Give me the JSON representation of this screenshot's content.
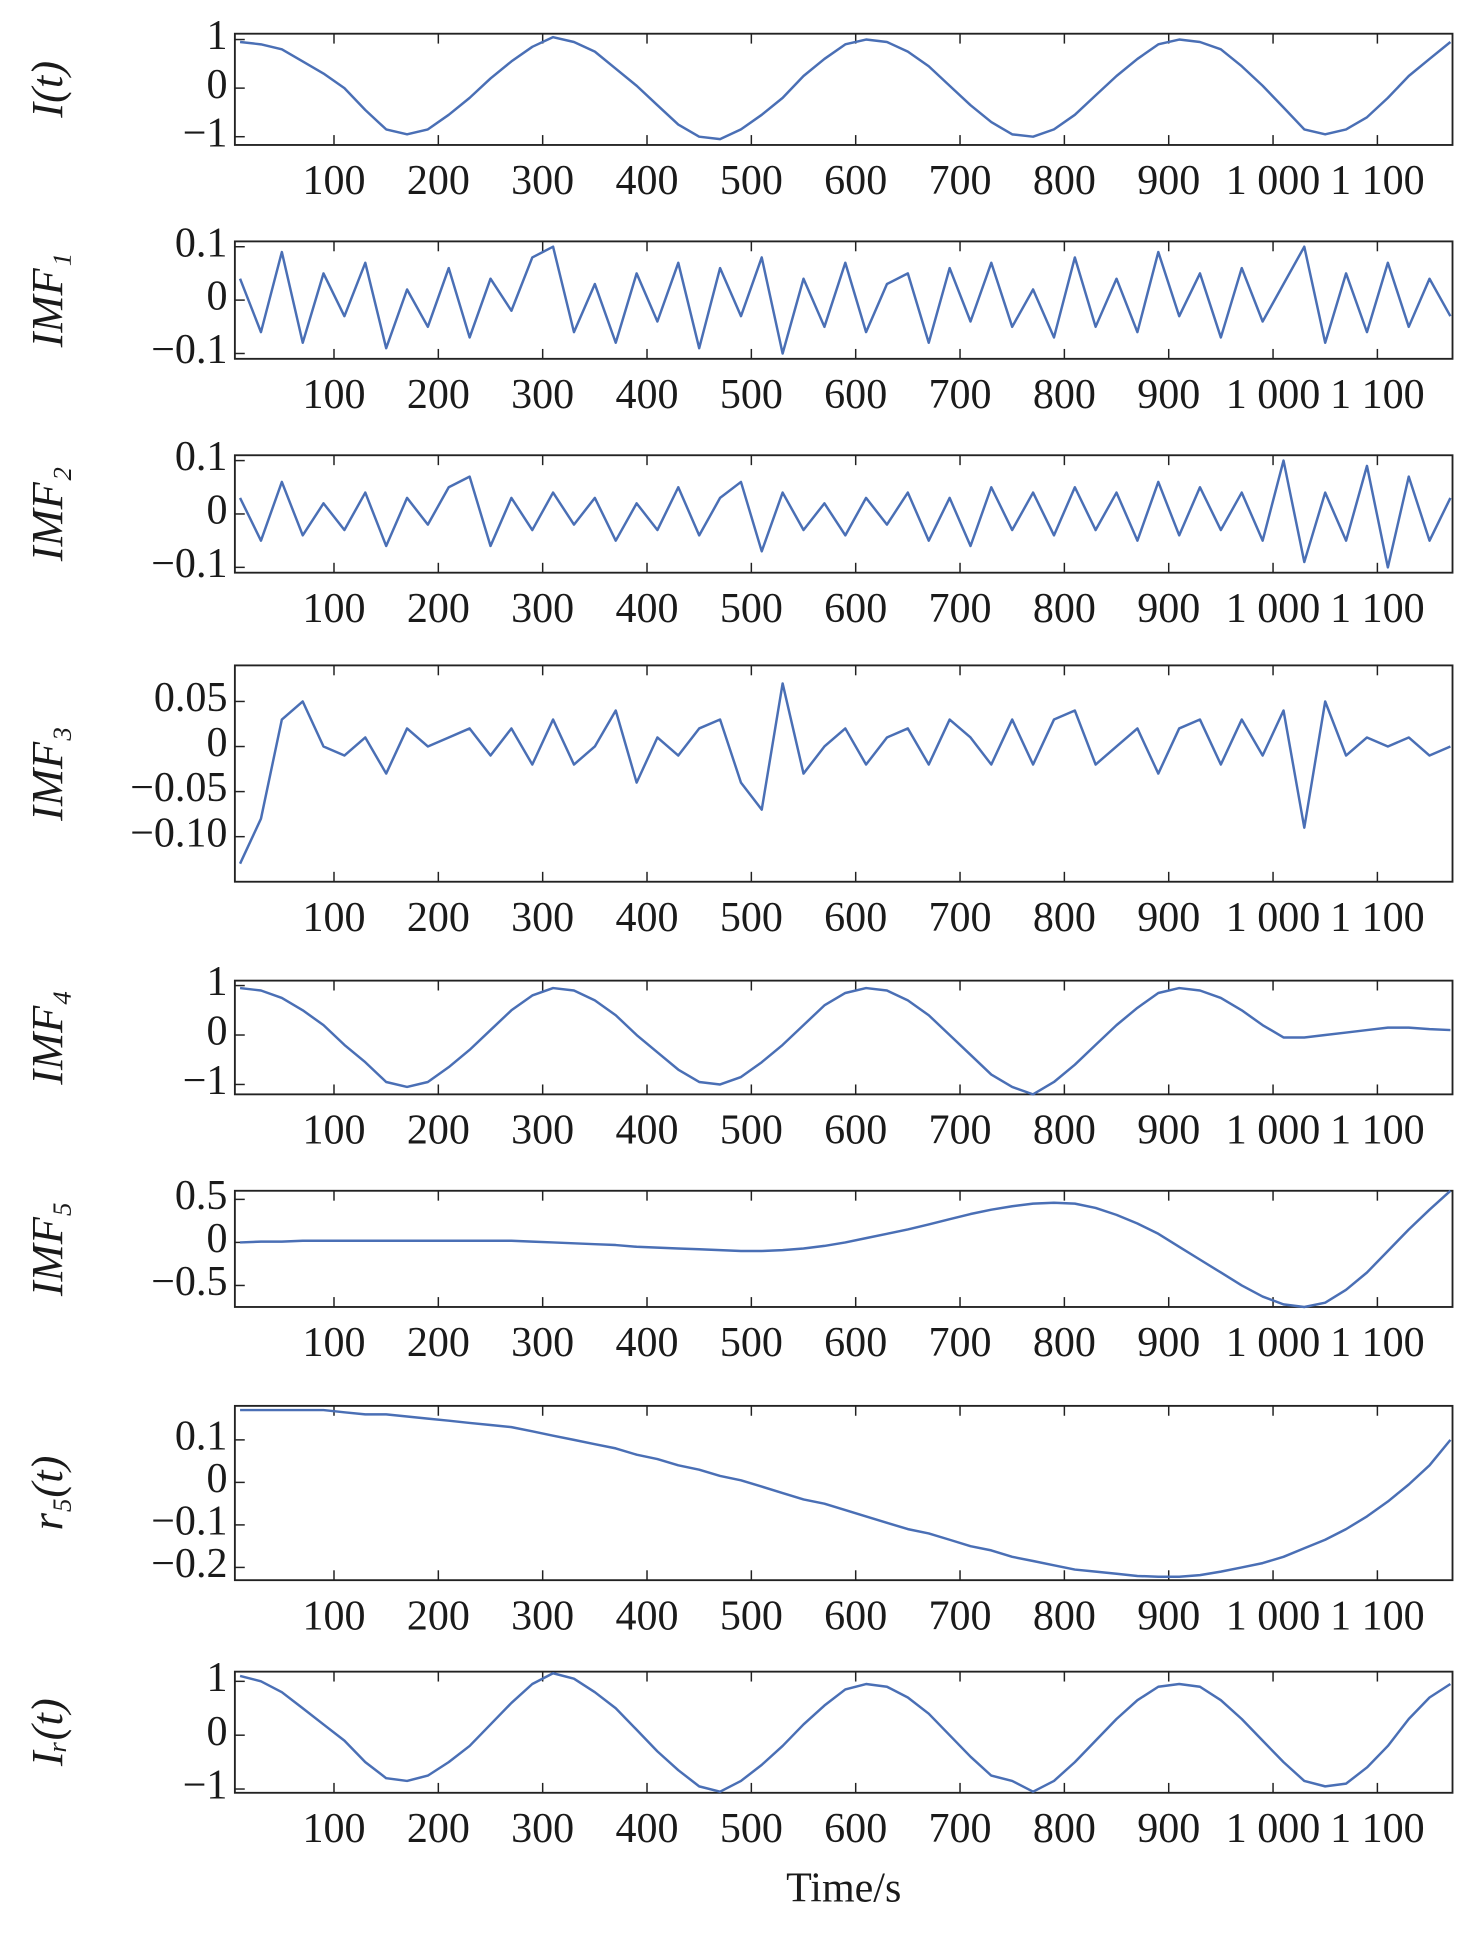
{
  "chart_data": [
    {
      "type": "line",
      "ylabel": "I(t)",
      "color": "#4a6fb5",
      "x": [
        10,
        30,
        50,
        70,
        90,
        110,
        130,
        150,
        170,
        190,
        210,
        230,
        250,
        270,
        290,
        310,
        330,
        350,
        370,
        390,
        410,
        430,
        450,
        470,
        490,
        510,
        530,
        550,
        570,
        590,
        610,
        630,
        650,
        670,
        690,
        710,
        730,
        750,
        770,
        790,
        810,
        830,
        850,
        870,
        890,
        910,
        930,
        950,
        970,
        990,
        1010,
        1030,
        1050,
        1070,
        1090,
        1110,
        1130,
        1150,
        1170
      ],
      "values": [
        0.95,
        0.9,
        0.8,
        0.55,
        0.3,
        0.0,
        -0.45,
        -0.85,
        -0.95,
        -0.85,
        -0.55,
        -0.2,
        0.2,
        0.55,
        0.85,
        1.05,
        0.95,
        0.75,
        0.4,
        0.05,
        -0.35,
        -0.75,
        -1.0,
        -1.05,
        -0.85,
        -0.55,
        -0.2,
        0.25,
        0.6,
        0.9,
        1.0,
        0.95,
        0.75,
        0.45,
        0.05,
        -0.35,
        -0.7,
        -0.95,
        -1.0,
        -0.85,
        -0.55,
        -0.15,
        0.25,
        0.6,
        0.9,
        1.0,
        0.95,
        0.8,
        0.45,
        0.05,
        -0.4,
        -0.85,
        -0.95,
        -0.85,
        -0.6,
        -0.2,
        0.25,
        0.6,
        0.95
      ],
      "xlim": [
        5,
        1172
      ],
      "xticks": [
        100,
        200,
        300,
        400,
        500,
        600,
        700,
        800,
        900,
        {
          "value": 1000,
          "label": "1 000"
        },
        {
          "value": 1100,
          "label": "1 100"
        }
      ],
      "ylim": [
        -1.17,
        1.12
      ],
      "yticks": [
        {
          "value": -1,
          "label": "−1"
        },
        0,
        1
      ]
    },
    {
      "type": "line",
      "ylabel": "IMF₁",
      "color": "#4a6fb5",
      "x": [
        10,
        30,
        50,
        70,
        90,
        110,
        130,
        150,
        170,
        190,
        210,
        230,
        250,
        270,
        290,
        310,
        330,
        350,
        370,
        390,
        410,
        430,
        450,
        470,
        490,
        510,
        530,
        550,
        570,
        590,
        610,
        630,
        650,
        670,
        690,
        710,
        730,
        750,
        770,
        790,
        810,
        830,
        850,
        870,
        890,
        910,
        930,
        950,
        970,
        990,
        1010,
        1030,
        1050,
        1070,
        1090,
        1110,
        1130,
        1150,
        1170
      ],
      "values": [
        0.04,
        -0.06,
        0.09,
        -0.08,
        0.05,
        -0.03,
        0.07,
        -0.09,
        0.02,
        -0.05,
        0.06,
        -0.07,
        0.04,
        -0.02,
        0.08,
        0.1,
        -0.06,
        0.03,
        -0.08,
        0.05,
        -0.04,
        0.07,
        -0.09,
        0.06,
        -0.03,
        0.08,
        -0.1,
        0.04,
        -0.05,
        0.07,
        -0.06,
        0.03,
        0.05,
        -0.08,
        0.06,
        -0.04,
        0.07,
        -0.05,
        0.02,
        -0.07,
        0.08,
        -0.05,
        0.04,
        -0.06,
        0.09,
        -0.03,
        0.05,
        -0.07,
        0.06,
        -0.04,
        0.03,
        0.1,
        -0.08,
        0.05,
        -0.06,
        0.07,
        -0.05,
        0.04,
        -0.03
      ],
      "xlim": [
        5,
        1172
      ],
      "xticks": [
        100,
        200,
        300,
        400,
        500,
        600,
        700,
        800,
        900,
        {
          "value": 1000,
          "label": "1 000"
        },
        {
          "value": 1100,
          "label": "1 100"
        }
      ],
      "ylim": [
        -0.11,
        0.11
      ],
      "yticks": [
        {
          "value": -0.1,
          "label": "−0.1"
        },
        0,
        0.1
      ]
    },
    {
      "type": "line",
      "ylabel": "IMF₂",
      "color": "#4a6fb5",
      "x": [
        10,
        30,
        50,
        70,
        90,
        110,
        130,
        150,
        170,
        190,
        210,
        230,
        250,
        270,
        290,
        310,
        330,
        350,
        370,
        390,
        410,
        430,
        450,
        470,
        490,
        510,
        530,
        550,
        570,
        590,
        610,
        630,
        650,
        670,
        690,
        710,
        730,
        750,
        770,
        790,
        810,
        830,
        850,
        870,
        890,
        910,
        930,
        950,
        970,
        990,
        1010,
        1030,
        1050,
        1070,
        1090,
        1110,
        1130,
        1150,
        1170
      ],
      "values": [
        0.03,
        -0.05,
        0.06,
        -0.04,
        0.02,
        -0.03,
        0.04,
        -0.06,
        0.03,
        -0.02,
        0.05,
        0.07,
        -0.06,
        0.03,
        -0.03,
        0.04,
        -0.02,
        0.03,
        -0.05,
        0.02,
        -0.03,
        0.05,
        -0.04,
        0.03,
        0.06,
        -0.07,
        0.04,
        -0.03,
        0.02,
        -0.04,
        0.03,
        -0.02,
        0.04,
        -0.05,
        0.03,
        -0.06,
        0.05,
        -0.03,
        0.04,
        -0.04,
        0.05,
        -0.03,
        0.04,
        -0.05,
        0.06,
        -0.04,
        0.05,
        -0.03,
        0.04,
        -0.05,
        0.1,
        -0.09,
        0.04,
        -0.05,
        0.09,
        -0.1,
        0.07,
        -0.05,
        0.03
      ],
      "xlim": [
        5,
        1172
      ],
      "xticks": [
        100,
        200,
        300,
        400,
        500,
        600,
        700,
        800,
        900,
        {
          "value": 1000,
          "label": "1 000"
        },
        {
          "value": 1100,
          "label": "1 100"
        }
      ],
      "ylim": [
        -0.11,
        0.11
      ],
      "yticks": [
        {
          "value": -0.1,
          "label": "−0.1"
        },
        0,
        0.1
      ]
    },
    {
      "type": "line",
      "ylabel": "IMF₃",
      "color": "#4a6fb5",
      "x": [
        10,
        30,
        50,
        70,
        90,
        110,
        130,
        150,
        170,
        190,
        210,
        230,
        250,
        270,
        290,
        310,
        330,
        350,
        370,
        390,
        410,
        430,
        450,
        470,
        490,
        510,
        530,
        550,
        570,
        590,
        610,
        630,
        650,
        670,
        690,
        710,
        730,
        750,
        770,
        790,
        810,
        830,
        850,
        870,
        890,
        910,
        930,
        950,
        970,
        990,
        1010,
        1030,
        1050,
        1070,
        1090,
        1110,
        1130,
        1150,
        1170
      ],
      "values": [
        -0.13,
        -0.08,
        0.03,
        0.05,
        0.0,
        -0.01,
        0.01,
        -0.03,
        0.02,
        0.0,
        0.01,
        0.02,
        -0.01,
        0.02,
        -0.02,
        0.03,
        -0.02,
        0.0,
        0.04,
        -0.04,
        0.01,
        -0.01,
        0.02,
        0.03,
        -0.04,
        -0.07,
        0.07,
        -0.03,
        0.0,
        0.02,
        -0.02,
        0.01,
        0.02,
        -0.02,
        0.03,
        0.01,
        -0.02,
        0.03,
        -0.02,
        0.03,
        0.04,
        -0.02,
        0.0,
        0.02,
        -0.03,
        0.02,
        0.03,
        -0.02,
        0.03,
        -0.01,
        0.04,
        -0.09,
        0.05,
        -0.01,
        0.01,
        0.0,
        0.01,
        -0.01,
        0.0
      ],
      "xlim": [
        5,
        1172
      ],
      "xticks": [
        100,
        200,
        300,
        400,
        500,
        600,
        700,
        800,
        900,
        {
          "value": 1000,
          "label": "1 000"
        },
        {
          "value": 1100,
          "label": "1 100"
        }
      ],
      "ylim": [
        -0.15,
        0.09
      ],
      "yticks": [
        {
          "value": -0.1,
          "label": "−0.10"
        },
        {
          "value": -0.05,
          "label": "−0.05"
        },
        0,
        0.05
      ]
    },
    {
      "type": "line",
      "ylabel": "IMF₄",
      "color": "#4a6fb5",
      "x": [
        10,
        30,
        50,
        70,
        90,
        110,
        130,
        150,
        170,
        190,
        210,
        230,
        250,
        270,
        290,
        310,
        330,
        350,
        370,
        390,
        410,
        430,
        450,
        470,
        490,
        510,
        530,
        550,
        570,
        590,
        610,
        630,
        650,
        670,
        690,
        710,
        730,
        750,
        770,
        790,
        810,
        830,
        850,
        870,
        890,
        910,
        930,
        950,
        970,
        990,
        1010,
        1030,
        1050,
        1070,
        1090,
        1110,
        1130,
        1150,
        1170
      ],
      "values": [
        0.95,
        0.9,
        0.75,
        0.5,
        0.2,
        -0.2,
        -0.55,
        -0.95,
        -1.05,
        -0.95,
        -0.65,
        -0.3,
        0.1,
        0.5,
        0.8,
        0.95,
        0.9,
        0.7,
        0.4,
        0.0,
        -0.35,
        -0.7,
        -0.95,
        -1.0,
        -0.85,
        -0.55,
        -0.2,
        0.2,
        0.6,
        0.85,
        0.95,
        0.9,
        0.7,
        0.4,
        0.0,
        -0.4,
        -0.8,
        -1.05,
        -1.2,
        -0.95,
        -0.6,
        -0.2,
        0.2,
        0.55,
        0.85,
        0.95,
        0.9,
        0.75,
        0.5,
        0.2,
        -0.05,
        -0.05,
        0.0,
        0.05,
        0.1,
        0.15,
        0.15,
        0.12,
        0.1
      ],
      "xlim": [
        5,
        1172
      ],
      "xticks": [
        100,
        200,
        300,
        400,
        500,
        600,
        700,
        800,
        900,
        {
          "value": 1000,
          "label": "1 000"
        },
        {
          "value": 1100,
          "label": "1 100"
        }
      ],
      "ylim": [
        -1.2,
        1.1
      ],
      "yticks": [
        {
          "value": -1,
          "label": "−1"
        },
        0,
        1
      ]
    },
    {
      "type": "line",
      "ylabel": "IMF₅",
      "color": "#4a6fb5",
      "x": [
        10,
        30,
        50,
        70,
        90,
        110,
        130,
        150,
        170,
        190,
        210,
        230,
        250,
        270,
        290,
        310,
        330,
        350,
        370,
        390,
        410,
        430,
        450,
        470,
        490,
        510,
        530,
        550,
        570,
        590,
        610,
        630,
        650,
        670,
        690,
        710,
        730,
        750,
        770,
        790,
        810,
        830,
        850,
        870,
        890,
        910,
        930,
        950,
        970,
        990,
        1010,
        1030,
        1050,
        1070,
        1090,
        1110,
        1130,
        1150,
        1170
      ],
      "values": [
        0.0,
        0.01,
        0.01,
        0.02,
        0.02,
        0.02,
        0.02,
        0.02,
        0.02,
        0.02,
        0.02,
        0.02,
        0.02,
        0.02,
        0.01,
        0.0,
        -0.01,
        -0.02,
        -0.03,
        -0.05,
        -0.06,
        -0.07,
        -0.08,
        -0.09,
        -0.1,
        -0.1,
        -0.09,
        -0.07,
        -0.04,
        0.0,
        0.05,
        0.1,
        0.15,
        0.21,
        0.27,
        0.33,
        0.38,
        0.42,
        0.45,
        0.46,
        0.45,
        0.4,
        0.32,
        0.22,
        0.1,
        -0.05,
        -0.2,
        -0.35,
        -0.5,
        -0.63,
        -0.72,
        -0.75,
        -0.7,
        -0.55,
        -0.35,
        -0.1,
        0.15,
        0.38,
        0.6
      ],
      "xlim": [
        5,
        1172
      ],
      "xticks": [
        100,
        200,
        300,
        400,
        500,
        600,
        700,
        800,
        900,
        {
          "value": 1000,
          "label": "1 000"
        },
        {
          "value": 1100,
          "label": "1 100"
        }
      ],
      "ylim": [
        -0.75,
        0.6
      ],
      "yticks": [
        {
          "value": -0.5,
          "label": "−0.5"
        },
        0,
        0.5
      ]
    },
    {
      "type": "line",
      "ylabel": "r₅(t)",
      "color": "#4a6fb5",
      "x": [
        10,
        30,
        50,
        70,
        90,
        110,
        130,
        150,
        170,
        190,
        210,
        230,
        250,
        270,
        290,
        310,
        330,
        350,
        370,
        390,
        410,
        430,
        450,
        470,
        490,
        510,
        530,
        550,
        570,
        590,
        610,
        630,
        650,
        670,
        690,
        710,
        730,
        750,
        770,
        790,
        810,
        830,
        850,
        870,
        890,
        910,
        930,
        950,
        970,
        990,
        1010,
        1030,
        1050,
        1070,
        1090,
        1110,
        1130,
        1150,
        1170
      ],
      "values": [
        0.17,
        0.17,
        0.17,
        0.17,
        0.17,
        0.165,
        0.16,
        0.16,
        0.155,
        0.15,
        0.145,
        0.14,
        0.135,
        0.13,
        0.12,
        0.11,
        0.1,
        0.09,
        0.08,
        0.065,
        0.055,
        0.04,
        0.03,
        0.015,
        0.005,
        -0.01,
        -0.025,
        -0.04,
        -0.05,
        -0.065,
        -0.08,
        -0.095,
        -0.11,
        -0.12,
        -0.135,
        -0.15,
        -0.16,
        -0.175,
        -0.185,
        -0.195,
        -0.205,
        -0.21,
        -0.215,
        -0.22,
        -0.222,
        -0.222,
        -0.218,
        -0.21,
        -0.2,
        -0.19,
        -0.175,
        -0.155,
        -0.135,
        -0.11,
        -0.08,
        -0.045,
        -0.005,
        0.04,
        0.1
      ],
      "xlim": [
        5,
        1172
      ],
      "xticks": [
        100,
        200,
        300,
        400,
        500,
        600,
        700,
        800,
        900,
        {
          "value": 1000,
          "label": "1 000"
        },
        {
          "value": 1100,
          "label": "1 100"
        }
      ],
      "ylim": [
        -0.23,
        0.18
      ],
      "yticks": [
        {
          "value": -0.2,
          "label": "−0.2"
        },
        {
          "value": -0.1,
          "label": "−0.1"
        },
        0,
        0.1
      ]
    },
    {
      "type": "line",
      "ylabel": "Iᵣ(t)",
      "xlabel": "Time/s",
      "color": "#4a6fb5",
      "x": [
        10,
        30,
        50,
        70,
        90,
        110,
        130,
        150,
        170,
        190,
        210,
        230,
        250,
        270,
        290,
        310,
        330,
        350,
        370,
        390,
        410,
        430,
        450,
        470,
        490,
        510,
        530,
        550,
        570,
        590,
        610,
        630,
        650,
        670,
        690,
        710,
        730,
        750,
        770,
        790,
        810,
        830,
        850,
        870,
        890,
        910,
        930,
        950,
        970,
        990,
        1010,
        1030,
        1050,
        1070,
        1090,
        1110,
        1130,
        1150,
        1170
      ],
      "values": [
        1.1,
        1.0,
        0.8,
        0.5,
        0.2,
        -0.1,
        -0.5,
        -0.8,
        -0.85,
        -0.75,
        -0.5,
        -0.2,
        0.2,
        0.6,
        0.95,
        1.15,
        1.05,
        0.8,
        0.5,
        0.1,
        -0.3,
        -0.65,
        -0.95,
        -1.05,
        -0.85,
        -0.55,
        -0.2,
        0.2,
        0.55,
        0.85,
        0.95,
        0.9,
        0.7,
        0.4,
        0.0,
        -0.4,
        -0.75,
        -0.85,
        -1.05,
        -0.85,
        -0.5,
        -0.1,
        0.3,
        0.65,
        0.9,
        0.95,
        0.9,
        0.65,
        0.3,
        -0.1,
        -0.5,
        -0.85,
        -0.95,
        -0.9,
        -0.6,
        -0.2,
        0.3,
        0.7,
        0.95
      ],
      "xlim": [
        5,
        1172
      ],
      "xticks": [
        100,
        200,
        300,
        400,
        500,
        600,
        700,
        800,
        900,
        {
          "value": 1000,
          "label": "1 000"
        },
        {
          "value": 1100,
          "label": "1 100"
        }
      ],
      "ylim": [
        -1.07,
        1.18
      ],
      "yticks": [
        {
          "value": -1,
          "label": "−1"
        },
        0,
        1
      ]
    }
  ]
}
